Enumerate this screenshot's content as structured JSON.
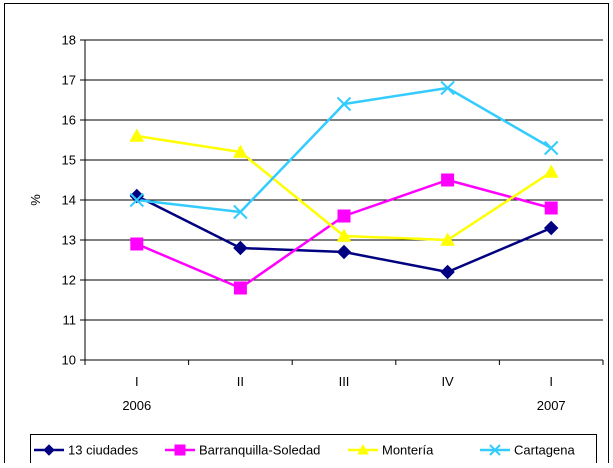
{
  "chart_data": {
    "type": "line",
    "title": "",
    "xlabel": "",
    "ylabel": "%",
    "ylim": [
      10,
      18
    ],
    "yticks": [
      "10",
      "11",
      "12",
      "13",
      "14",
      "15",
      "16",
      "17",
      "18"
    ],
    "categories": [
      "I",
      "II",
      "III",
      "IV",
      "I"
    ],
    "category_years": [
      "2006",
      "",
      "",
      "",
      "2007"
    ],
    "grid": "horizontal",
    "legend_position": "bottom",
    "series": [
      {
        "name": "13 ciudades",
        "color": "#000080",
        "marker": "diamond",
        "values": [
          14.1,
          12.8,
          12.7,
          12.2,
          13.3
        ]
      },
      {
        "name": "Barranquilla-Soledad",
        "color": "#FF00FF",
        "marker": "square",
        "values": [
          12.9,
          11.8,
          13.6,
          14.5,
          13.8
        ]
      },
      {
        "name": "Montería",
        "color": "#FFFF00",
        "marker": "triangle",
        "values": [
          15.6,
          15.2,
          13.1,
          13.0,
          14.7
        ]
      },
      {
        "name": "Cartagena",
        "color": "#33CCFF",
        "marker": "x",
        "values": [
          14.0,
          13.7,
          16.4,
          16.8,
          15.3
        ]
      }
    ]
  }
}
